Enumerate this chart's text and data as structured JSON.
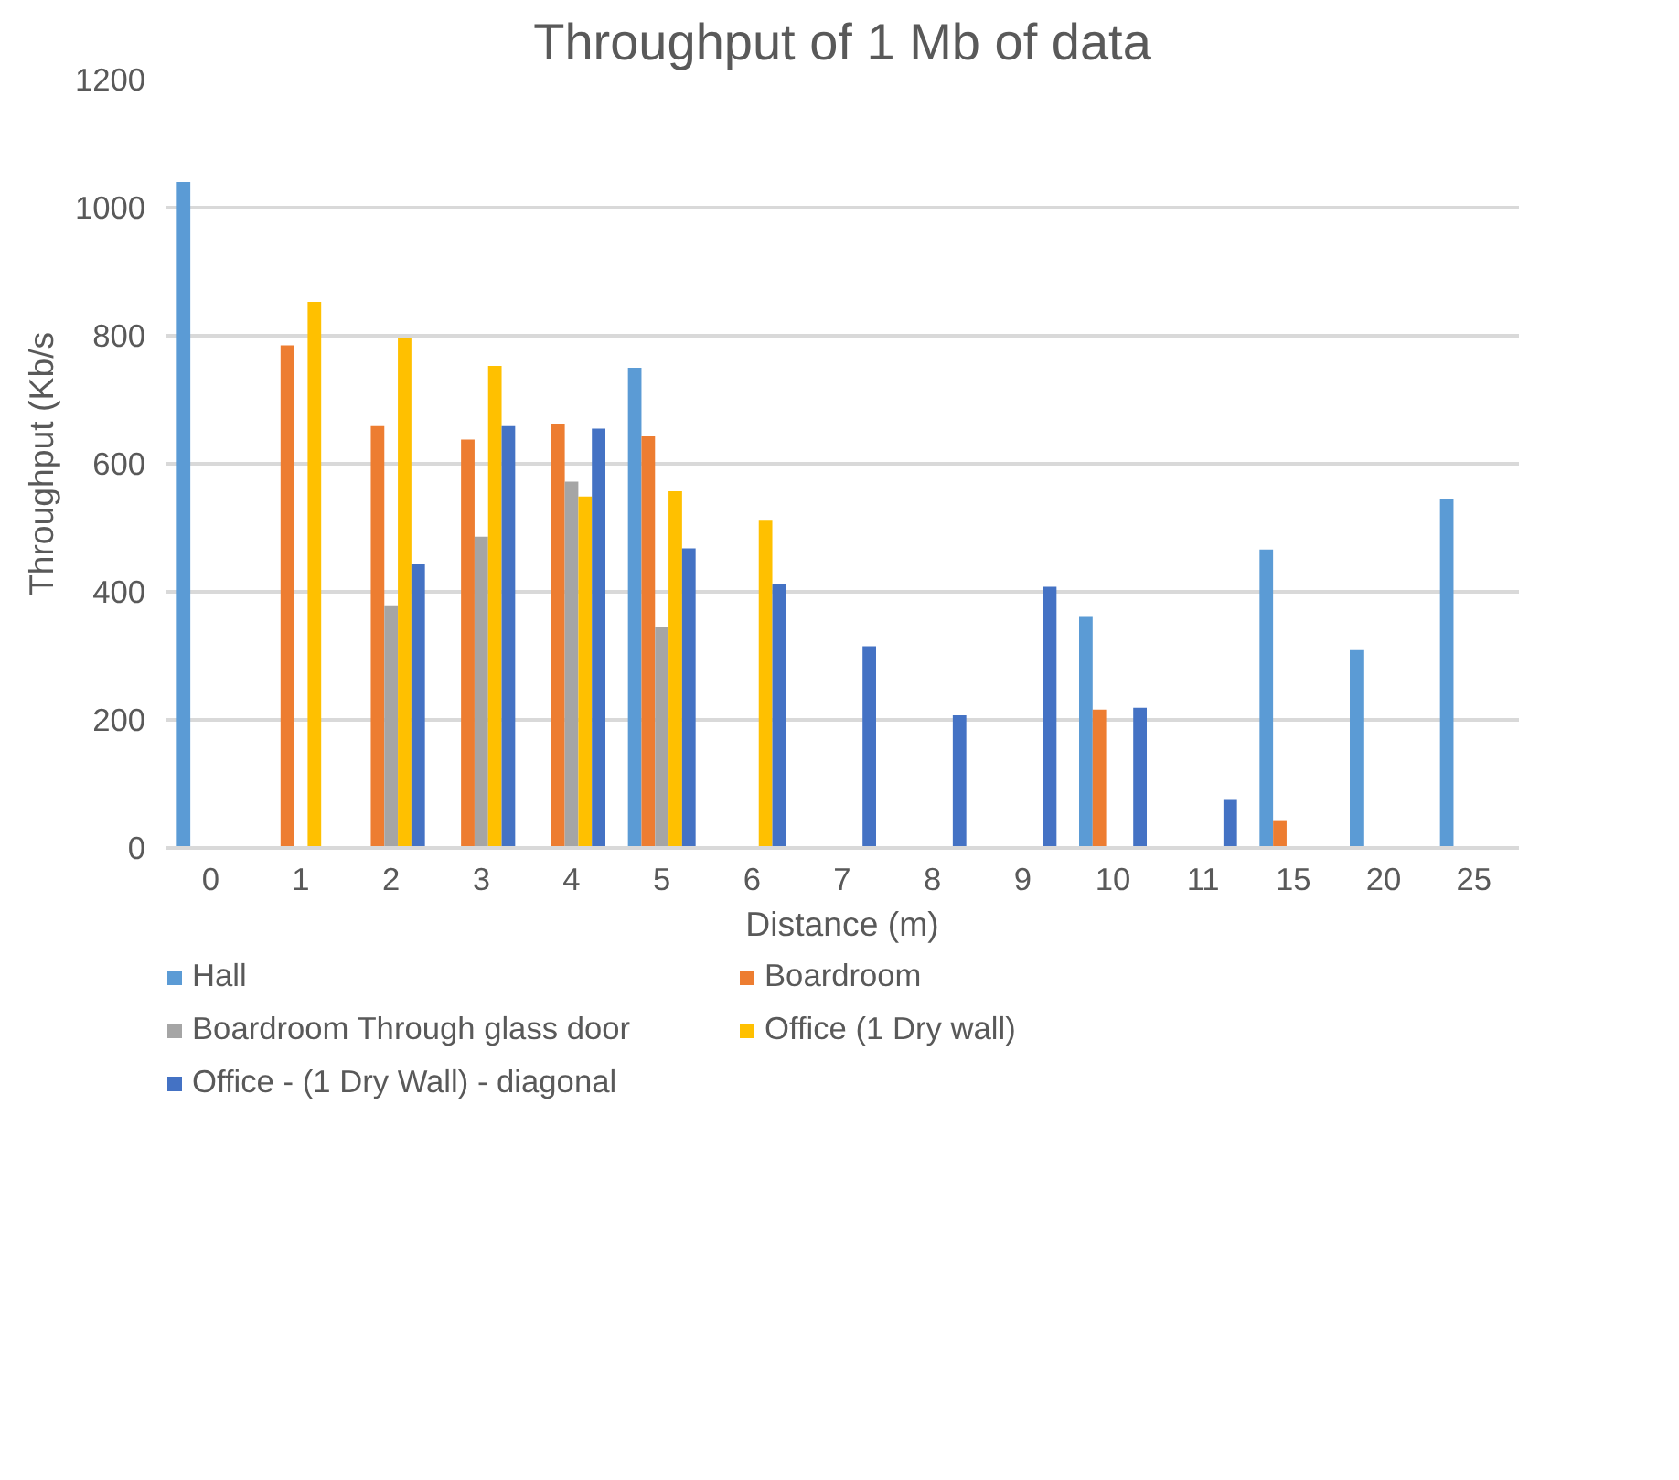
{
  "chart_data": {
    "type": "bar",
    "title": "Throughput of 1 Mb of data",
    "xlabel": "Distance (m)",
    "ylabel": "Throughput (Kb/s",
    "categories": [
      "0",
      "1",
      "2",
      "3",
      "4",
      "5",
      "6",
      "7",
      "8",
      "9",
      "10",
      "11",
      "15",
      "20",
      "25"
    ],
    "series": [
      {
        "name": "Hall",
        "color": "#5b9bd5",
        "values": [
          1040,
          null,
          null,
          null,
          null,
          750,
          null,
          null,
          null,
          null,
          362,
          null,
          466,
          309,
          545
        ]
      },
      {
        "name": "Boardroom",
        "color": "#ed7d31",
        "values": [
          null,
          785,
          659,
          638,
          662,
          643,
          null,
          null,
          null,
          null,
          216,
          null,
          42,
          null,
          null
        ]
      },
      {
        "name": "Boardroom Through glass door",
        "color": "#a5a5a5",
        "values": [
          null,
          null,
          379,
          486,
          572,
          345,
          null,
          null,
          null,
          null,
          null,
          null,
          null,
          null,
          null
        ]
      },
      {
        "name": "Office (1 Dry wall)",
        "color": "#ffc000",
        "values": [
          null,
          853,
          797,
          753,
          549,
          557,
          511,
          null,
          null,
          null,
          null,
          null,
          null,
          null,
          null
        ]
      },
      {
        "name": "Office - (1 Dry Wall) - diagonal",
        "color": "#4472c4",
        "values": [
          null,
          null,
          443,
          659,
          655,
          468,
          413,
          315,
          207,
          408,
          219,
          75,
          null,
          null,
          null
        ]
      }
    ],
    "ylim": [
      0,
      1200
    ],
    "yticks": [
      0,
      200,
      400,
      600,
      800,
      1000,
      1200
    ],
    "grid": "y",
    "legend": "bottom"
  }
}
